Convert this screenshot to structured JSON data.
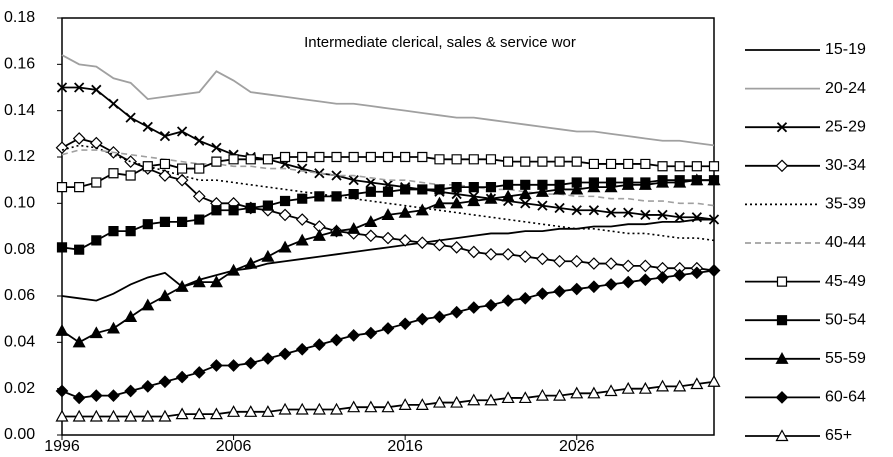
{
  "chart_data": {
    "type": "line",
    "title": "Intermediate clerical, sales & service wor",
    "x": [
      1996,
      1997,
      1998,
      1999,
      2000,
      2001,
      2002,
      2003,
      2004,
      2005,
      2006,
      2007,
      2008,
      2009,
      2010,
      2011,
      2012,
      2013,
      2014,
      2015,
      2016,
      2017,
      2018,
      2019,
      2020,
      2021,
      2022,
      2023,
      2024,
      2025,
      2026,
      2027,
      2028,
      2029,
      2030,
      2031,
      2032,
      2033,
      2034
    ],
    "xlim": [
      1996,
      2034
    ],
    "xticks": [
      1996,
      2006,
      2016,
      2026
    ],
    "ylim": [
      0,
      0.18
    ],
    "yticks": [
      {
        "value": 0,
        "label": "0.00"
      },
      0.02,
      0.04,
      0.06,
      0.08,
      {
        "value": 0.1,
        "label": "0.10"
      },
      0.12,
      0.14,
      0.16,
      0.18
    ],
    "grid": false,
    "legend": "right",
    "series": [
      {
        "name": "15-19",
        "color": "#000000",
        "marker": "none",
        "dash": "solid",
        "values": [
          0.06,
          0.059,
          0.058,
          0.061,
          0.065,
          0.068,
          0.07,
          0.064,
          0.067,
          0.069,
          0.071,
          0.072,
          0.074,
          0.075,
          0.076,
          0.077,
          0.078,
          0.079,
          0.08,
          0.081,
          0.082,
          0.083,
          0.084,
          0.085,
          0.086,
          0.087,
          0.087,
          0.088,
          0.088,
          0.089,
          0.089,
          0.09,
          0.09,
          0.091,
          0.091,
          0.092,
          0.092,
          0.093,
          0.093
        ]
      },
      {
        "name": "20-24",
        "color": "#a0a0a0",
        "marker": "none",
        "dash": "solid",
        "values": [
          0.164,
          0.16,
          0.159,
          0.154,
          0.152,
          0.145,
          0.146,
          0.147,
          0.148,
          0.157,
          0.153,
          0.148,
          0.147,
          0.146,
          0.145,
          0.144,
          0.143,
          0.143,
          0.142,
          0.141,
          0.14,
          0.139,
          0.138,
          0.137,
          0.137,
          0.136,
          0.135,
          0.134,
          0.133,
          0.132,
          0.131,
          0.131,
          0.13,
          0.129,
          0.128,
          0.127,
          0.127,
          0.126,
          0.125
        ]
      },
      {
        "name": "25-29",
        "color": "#000000",
        "marker": "x",
        "dash": "solid",
        "values": [
          0.15,
          0.15,
          0.149,
          0.143,
          0.137,
          0.133,
          0.129,
          0.131,
          0.127,
          0.124,
          0.121,
          0.12,
          0.119,
          0.117,
          0.115,
          0.113,
          0.112,
          0.11,
          0.109,
          0.108,
          0.107,
          0.106,
          0.105,
          0.104,
          0.103,
          0.102,
          0.101,
          0.1,
          0.099,
          0.098,
          0.097,
          0.097,
          0.096,
          0.096,
          0.095,
          0.095,
          0.094,
          0.094,
          0.093
        ]
      },
      {
        "name": "30-34",
        "color": "#000000",
        "marker": "diamond-open",
        "dash": "solid",
        "values": [
          0.124,
          0.128,
          0.126,
          0.122,
          0.118,
          0.115,
          0.112,
          0.11,
          0.103,
          0.1,
          0.1,
          0.098,
          0.097,
          0.095,
          0.093,
          0.09,
          0.088,
          0.087,
          0.086,
          0.085,
          0.084,
          0.083,
          0.082,
          0.081,
          0.079,
          0.078,
          0.078,
          0.077,
          0.076,
          0.075,
          0.075,
          0.074,
          0.074,
          0.073,
          0.073,
          0.072,
          0.072,
          0.072,
          0.071
        ]
      },
      {
        "name": "35-39",
        "color": "#000000",
        "marker": "none",
        "dash": "dotted",
        "values": [
          0.123,
          0.125,
          0.124,
          0.121,
          0.118,
          0.116,
          0.114,
          0.112,
          0.11,
          0.11,
          0.109,
          0.108,
          0.107,
          0.106,
          0.105,
          0.104,
          0.103,
          0.102,
          0.101,
          0.1,
          0.099,
          0.098,
          0.097,
          0.096,
          0.095,
          0.094,
          0.093,
          0.092,
          0.091,
          0.09,
          0.089,
          0.089,
          0.088,
          0.087,
          0.087,
          0.086,
          0.085,
          0.085,
          0.084
        ]
      },
      {
        "name": "40-44",
        "color": "#a0a0a0",
        "marker": "none",
        "dash": "dashed",
        "values": [
          0.121,
          0.123,
          0.123,
          0.122,
          0.121,
          0.12,
          0.119,
          0.118,
          0.117,
          0.117,
          0.116,
          0.116,
          0.115,
          0.115,
          0.114,
          0.113,
          0.112,
          0.112,
          0.111,
          0.11,
          0.11,
          0.109,
          0.108,
          0.108,
          0.107,
          0.106,
          0.106,
          0.105,
          0.104,
          0.104,
          0.103,
          0.103,
          0.102,
          0.102,
          0.101,
          0.101,
          0.1,
          0.1,
          0.099
        ]
      },
      {
        "name": "45-49",
        "color": "#000000",
        "marker": "square-open",
        "dash": "solid",
        "values": [
          0.107,
          0.107,
          0.109,
          0.113,
          0.112,
          0.116,
          0.117,
          0.115,
          0.115,
          0.118,
          0.119,
          0.119,
          0.119,
          0.12,
          0.12,
          0.12,
          0.12,
          0.12,
          0.12,
          0.12,
          0.12,
          0.12,
          0.119,
          0.119,
          0.119,
          0.119,
          0.118,
          0.118,
          0.118,
          0.118,
          0.118,
          0.117,
          0.117,
          0.117,
          0.117,
          0.116,
          0.116,
          0.116,
          0.116
        ]
      },
      {
        "name": "50-54",
        "color": "#000000",
        "marker": "square",
        "dash": "solid",
        "values": [
          0.081,
          0.08,
          0.084,
          0.088,
          0.088,
          0.091,
          0.092,
          0.092,
          0.093,
          0.097,
          0.097,
          0.098,
          0.099,
          0.101,
          0.102,
          0.103,
          0.103,
          0.104,
          0.105,
          0.105,
          0.106,
          0.106,
          0.106,
          0.107,
          0.107,
          0.107,
          0.108,
          0.108,
          0.108,
          0.108,
          0.109,
          0.109,
          0.109,
          0.109,
          0.109,
          0.11,
          0.11,
          0.11,
          0.11
        ]
      },
      {
        "name": "55-59",
        "color": "#000000",
        "marker": "triangle",
        "dash": "solid",
        "values": [
          0.045,
          0.04,
          0.044,
          0.046,
          0.051,
          0.056,
          0.06,
          0.064,
          0.066,
          0.066,
          0.071,
          0.074,
          0.077,
          0.081,
          0.084,
          0.086,
          0.088,
          0.089,
          0.092,
          0.095,
          0.096,
          0.097,
          0.1,
          0.1,
          0.101,
          0.102,
          0.103,
          0.104,
          0.105,
          0.106,
          0.106,
          0.107,
          0.107,
          0.108,
          0.108,
          0.109,
          0.109,
          0.11,
          0.11
        ]
      },
      {
        "name": "60-64",
        "color": "#000000",
        "marker": "diamond",
        "dash": "solid",
        "values": [
          0.019,
          0.016,
          0.017,
          0.017,
          0.019,
          0.021,
          0.023,
          0.025,
          0.027,
          0.03,
          0.03,
          0.031,
          0.033,
          0.035,
          0.037,
          0.039,
          0.041,
          0.043,
          0.044,
          0.046,
          0.048,
          0.05,
          0.051,
          0.053,
          0.055,
          0.056,
          0.058,
          0.059,
          0.061,
          0.062,
          0.063,
          0.064,
          0.065,
          0.066,
          0.067,
          0.068,
          0.069,
          0.07,
          0.071
        ]
      },
      {
        "name": "65+",
        "color": "#000000",
        "marker": "triangle-open",
        "dash": "solid",
        "values": [
          0.008,
          0.008,
          0.008,
          0.008,
          0.008,
          0.008,
          0.008,
          0.009,
          0.009,
          0.009,
          0.01,
          0.01,
          0.01,
          0.011,
          0.011,
          0.011,
          0.011,
          0.012,
          0.012,
          0.012,
          0.013,
          0.013,
          0.014,
          0.014,
          0.015,
          0.015,
          0.016,
          0.016,
          0.017,
          0.017,
          0.018,
          0.018,
          0.019,
          0.02,
          0.02,
          0.021,
          0.021,
          0.022,
          0.023
        ]
      }
    ]
  }
}
